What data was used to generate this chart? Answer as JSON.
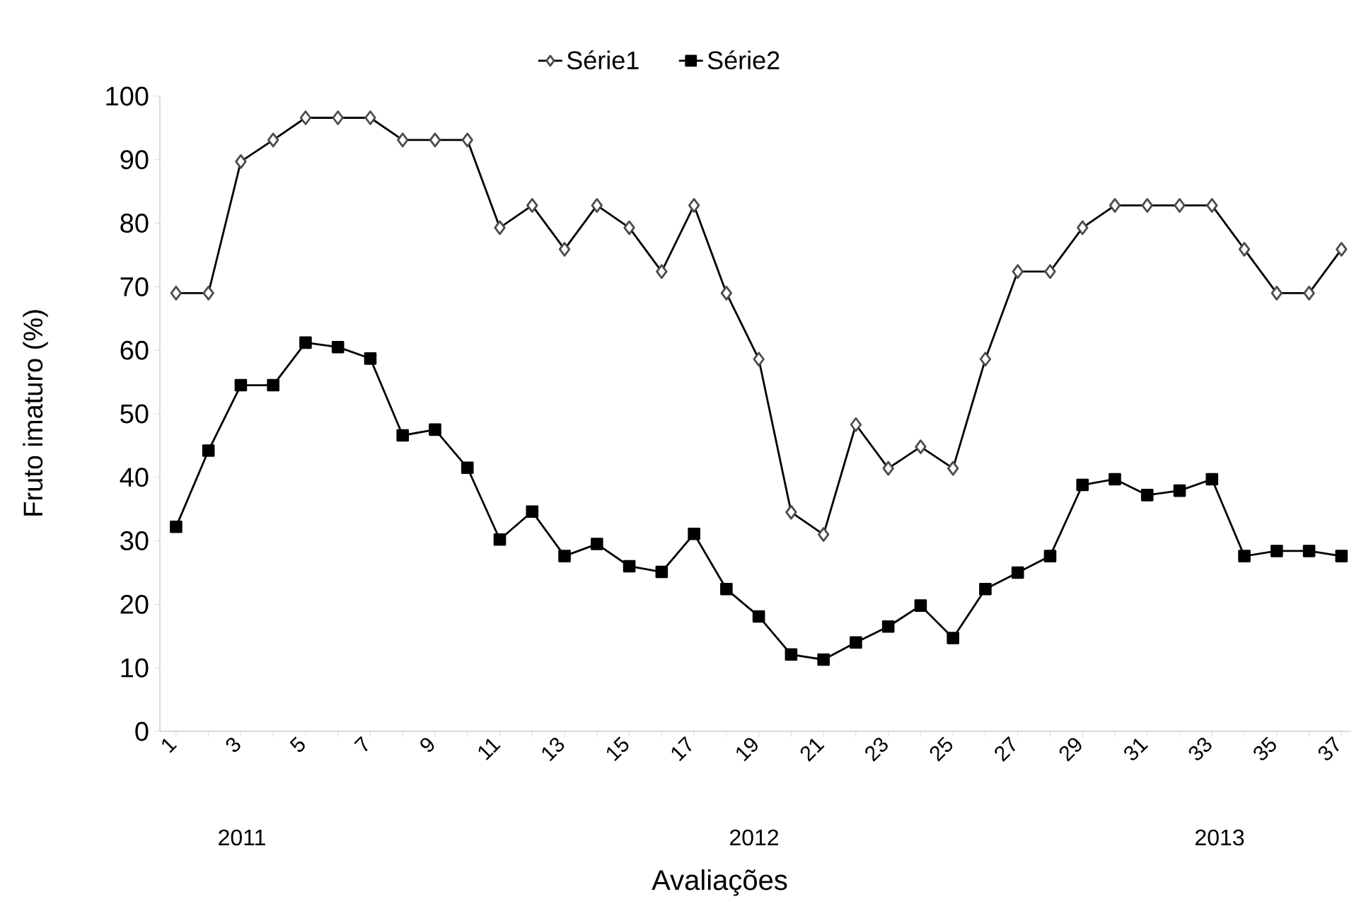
{
  "chart_data": {
    "type": "line",
    "xlabel": "Avaliações",
    "ylabel": "Fruto  imaturo (%)",
    "categories": [
      "1",
      null,
      "3",
      null,
      "5",
      null,
      "7",
      null,
      "9",
      null,
      "11",
      null,
      "13",
      null,
      "15",
      null,
      "17",
      null,
      "19",
      null,
      "21",
      null,
      "23",
      null,
      "25",
      null,
      "27",
      null,
      "29",
      null,
      "31",
      null,
      "33",
      null,
      "35",
      null,
      "37"
    ],
    "series": [
      {
        "name": "Série1",
        "color": "#000000",
        "marker": "diamond",
        "values": [
          69,
          69,
          89.7,
          93.1,
          96.6,
          96.6,
          96.6,
          93.1,
          93.1,
          93.1,
          79.3,
          82.8,
          75.9,
          82.8,
          79.3,
          72.4,
          82.8,
          69,
          58.6,
          34.5,
          31,
          48.3,
          41.4,
          44.8,
          41.4,
          58.6,
          72.4,
          72.4,
          79.3,
          82.8,
          82.8,
          82.8,
          82.8,
          75.9,
          69,
          69,
          75.9
        ]
      },
      {
        "name": "Série2",
        "color": "#000000",
        "marker": "square",
        "values": [
          32.2,
          44.2,
          54.5,
          54.5,
          61.2,
          60.5,
          58.7,
          46.6,
          47.5,
          41.5,
          30.2,
          34.6,
          27.6,
          29.5,
          26,
          25.1,
          31.1,
          22.4,
          18.1,
          12.1,
          11.3,
          14,
          16.5,
          19.8,
          14.7,
          22.4,
          25,
          27.6,
          38.8,
          39.7,
          37.2,
          37.9,
          39.7,
          27.6,
          28.4,
          28.4,
          27.6
        ]
      }
    ],
    "ylim": [
      0,
      100
    ],
    "yticks": [
      0,
      10,
      20,
      30,
      40,
      50,
      60,
      70,
      80,
      90,
      100
    ],
    "grid": false,
    "legend": "top",
    "line_style": "solid",
    "annotations": [
      "2011",
      "2012",
      "2013"
    ]
  }
}
